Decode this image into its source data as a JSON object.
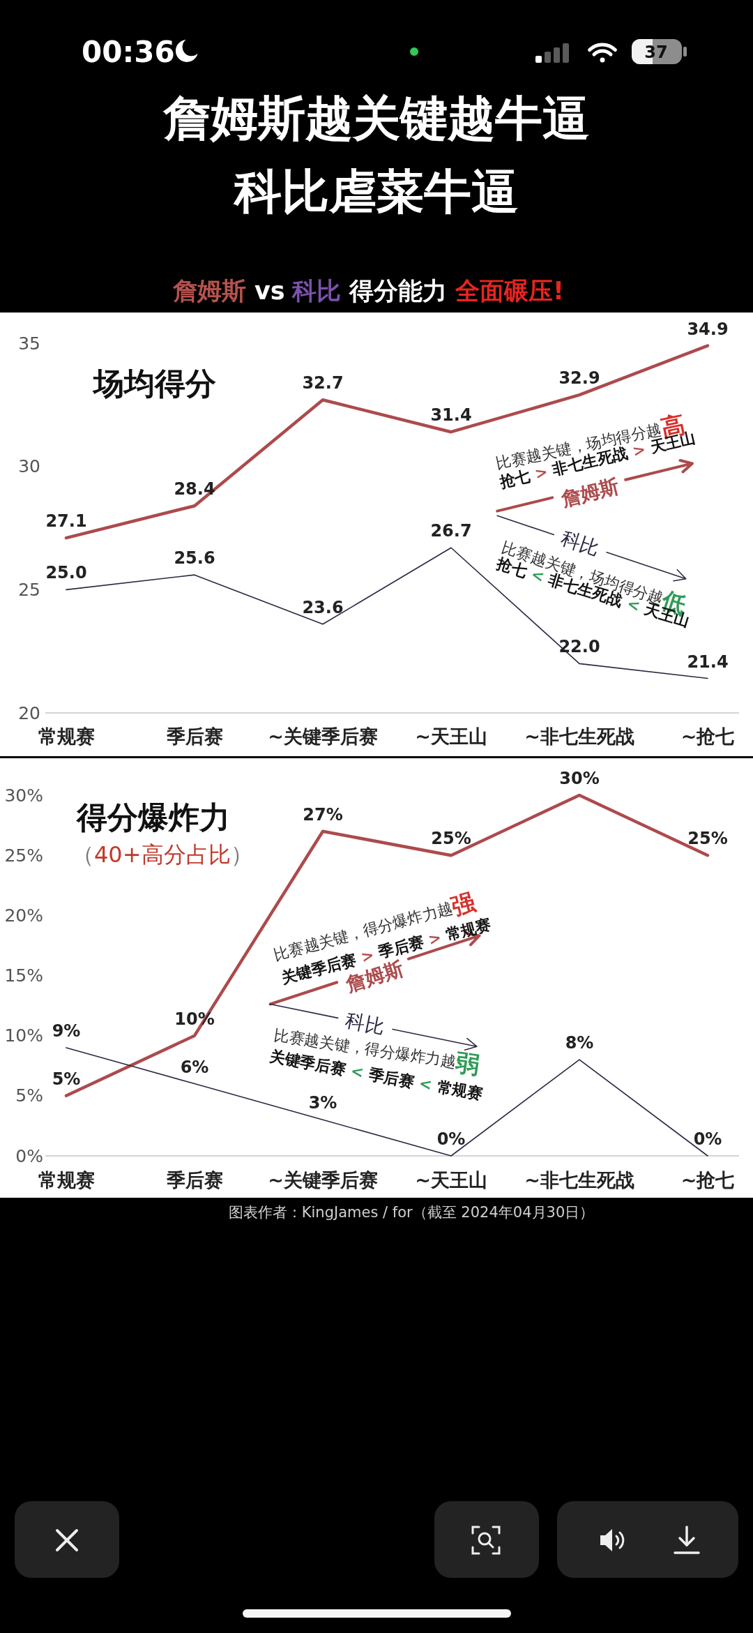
{
  "chart_data": [
    {
      "type": "other",
      "annotations": [
        "00:36",
        "37"
      ]
    },
    {
      "type": "other",
      "title": "詹姆斯越关键越牛逼",
      "subtitle": "科比虐菜牛逼",
      "annotations": [
        "詹姆斯",
        "vs",
        "科比",
        "得分能力",
        "全面碾压!"
      ],
      "colors": [
        "#b5524e",
        "#ffffff",
        "#7b52ab",
        "#ffffff",
        "#e8251f"
      ]
    },
    {
      "type": "line",
      "title": "场均得分",
      "categories": [
        "常规赛",
        "季后赛",
        "~关键季后赛",
        "~天王山",
        "~非七生死战",
        "~抢七"
      ],
      "ylim": [
        20,
        35
      ],
      "yticks": [
        20,
        25,
        30,
        35
      ],
      "series": [
        {
          "name": "詹姆斯",
          "color": "#ad4a4c",
          "values": [
            27.1,
            28.4,
            32.7,
            31.4,
            32.9,
            34.9
          ],
          "value_labels": [
            "27.1",
            "28.4",
            "32.7",
            "31.4",
            "32.9",
            "34.9"
          ]
        },
        {
          "name": "科比",
          "color": "#2d2845",
          "values": [
            25.0,
            25.6,
            23.6,
            26.7,
            22.0,
            21.4
          ],
          "value_labels": [
            "25.0",
            "25.6",
            "23.6",
            "26.7",
            "22.0",
            "21.4"
          ]
        }
      ],
      "annotations": [
        "比赛越关键，场均得分越高",
        "抢七 > 非七生死战 > 天王山",
        "比赛越关键，场均得分越低",
        "抢七 < 非七生死战 < 天王山"
      ]
    },
    {
      "type": "line",
      "title": "得分爆炸力",
      "subtitle": "（40+高分占比）",
      "categories": [
        "常规赛",
        "季后赛",
        "~关键季后赛",
        "~天王山",
        "~非七生死战",
        "~抢七"
      ],
      "ylim": [
        0,
        30
      ],
      "yticks": [
        {
          "value": 0,
          "label": "0%"
        },
        {
          "value": 5,
          "label": "5%"
        },
        {
          "value": 10,
          "label": "10%"
        },
        {
          "value": 15,
          "label": "15%"
        },
        {
          "value": 20,
          "label": "20%"
        },
        {
          "value": 25,
          "label": "25%"
        },
        {
          "value": 30,
          "label": "30%"
        }
      ],
      "series": [
        {
          "name": "詹姆斯",
          "color": "#ad4a4c",
          "values": [
            5,
            10,
            27,
            25,
            30,
            25
          ],
          "value_labels": [
            "5%",
            "10%",
            "27%",
            "25%",
            "30%",
            "25%"
          ]
        },
        {
          "name": "科比",
          "color": "#2d2845",
          "values": [
            9,
            6,
            3,
            0,
            8,
            0
          ],
          "value_labels": [
            "9%",
            "6%",
            "3%",
            "0%",
            "8%",
            "0%"
          ]
        }
      ],
      "annotations": [
        "比赛越关键，得分爆炸力越强",
        "关键季后赛 > 季后赛 > 常规赛",
        "比赛越关键，得分爆炸力越弱",
        "关键季后赛 < 季后赛 < 常规赛",
        "图表作者：KingJames / for（截至 2024年04月30日）"
      ]
    }
  ]
}
